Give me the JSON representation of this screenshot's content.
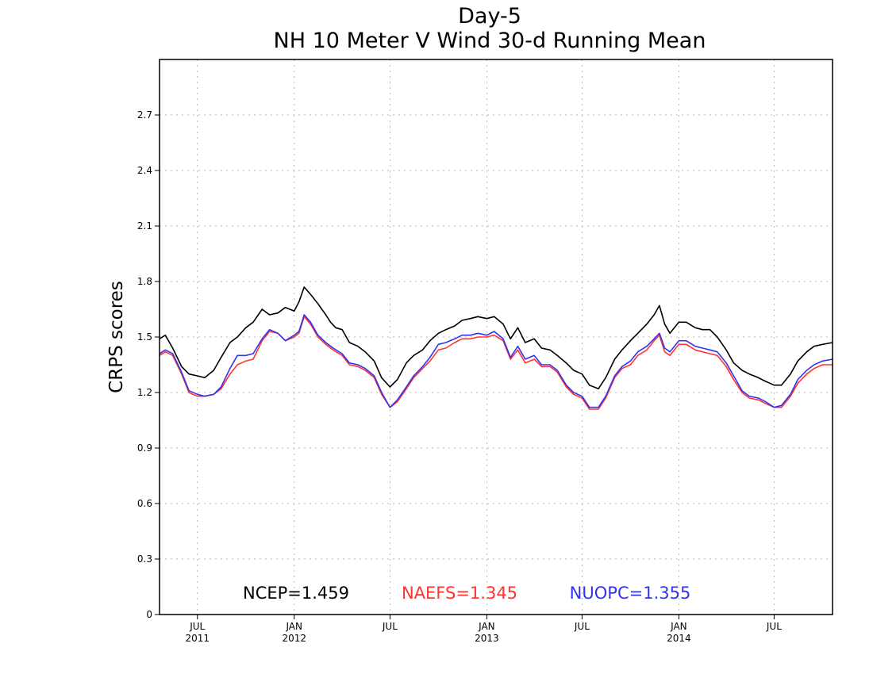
{
  "chart_data": {
    "type": "line",
    "title": "Day-5",
    "subtitle": "NH 10 Meter V Wind 30-d Running Mean",
    "ylabel": "CRPS scores",
    "xlabel": "",
    "ylim": [
      0,
      3.0
    ],
    "xlim": [
      "2011-04-20",
      "2014-10-20"
    ],
    "yticks": [
      0,
      0.3,
      0.6,
      0.9,
      1.2,
      1.5,
      1.8,
      2.1,
      2.4,
      2.7
    ],
    "ytick_labels": [
      "0",
      "0.3",
      "0.6",
      "0.9",
      "1.2",
      "1.5",
      "1.8",
      "2.1",
      "2.4",
      "2.7"
    ],
    "xticks": [
      {
        "date": "2011-07-01",
        "month": "JUL",
        "year": "2011"
      },
      {
        "date": "2012-01-01",
        "month": "JAN",
        "year": "2012"
      },
      {
        "date": "2012-07-01",
        "month": "JUL",
        "year": ""
      },
      {
        "date": "2013-01-01",
        "month": "JAN",
        "year": "2013"
      },
      {
        "date": "2013-07-01",
        "month": "JUL",
        "year": ""
      },
      {
        "date": "2014-01-01",
        "month": "JAN",
        "year": "2014"
      },
      {
        "date": "2014-07-01",
        "month": "JUL",
        "year": ""
      }
    ],
    "grid": true,
    "legend_placement": "bottom-center",
    "series": [
      {
        "name": "NCEP",
        "legend_label": "NCEP=1.459",
        "color": "#000000",
        "points": [
          [
            "2011-04-20",
            1.49
          ],
          [
            "2011-05-01",
            1.51
          ],
          [
            "2011-05-15",
            1.44
          ],
          [
            "2011-06-01",
            1.34
          ],
          [
            "2011-06-15",
            1.3
          ],
          [
            "2011-07-01",
            1.29
          ],
          [
            "2011-07-15",
            1.28
          ],
          [
            "2011-08-01",
            1.32
          ],
          [
            "2011-08-15",
            1.39
          ],
          [
            "2011-09-01",
            1.47
          ],
          [
            "2011-09-15",
            1.5
          ],
          [
            "2011-10-01",
            1.55
          ],
          [
            "2011-10-15",
            1.58
          ],
          [
            "2011-11-01",
            1.65
          ],
          [
            "2011-11-15",
            1.62
          ],
          [
            "2011-12-01",
            1.63
          ],
          [
            "2011-12-15",
            1.66
          ],
          [
            "2012-01-01",
            1.64
          ],
          [
            "2012-01-10",
            1.69
          ],
          [
            "2012-01-20",
            1.77
          ],
          [
            "2012-02-01",
            1.73
          ],
          [
            "2012-02-15",
            1.68
          ],
          [
            "2012-03-01",
            1.62
          ],
          [
            "2012-03-10",
            1.58
          ],
          [
            "2012-03-20",
            1.55
          ],
          [
            "2012-04-01",
            1.54
          ],
          [
            "2012-04-15",
            1.47
          ],
          [
            "2012-05-01",
            1.45
          ],
          [
            "2012-05-15",
            1.42
          ],
          [
            "2012-06-01",
            1.37
          ],
          [
            "2012-06-15",
            1.28
          ],
          [
            "2012-07-01",
            1.23
          ],
          [
            "2012-07-15",
            1.27
          ],
          [
            "2012-08-01",
            1.36
          ],
          [
            "2012-08-15",
            1.4
          ],
          [
            "2012-09-01",
            1.43
          ],
          [
            "2012-09-15",
            1.48
          ],
          [
            "2012-10-01",
            1.52
          ],
          [
            "2012-10-15",
            1.54
          ],
          [
            "2012-11-01",
            1.56
          ],
          [
            "2012-11-15",
            1.59
          ],
          [
            "2012-12-01",
            1.6
          ],
          [
            "2012-12-15",
            1.61
          ],
          [
            "2013-01-01",
            1.6
          ],
          [
            "2013-01-15",
            1.61
          ],
          [
            "2013-02-01",
            1.57
          ],
          [
            "2013-02-15",
            1.49
          ],
          [
            "2013-03-01",
            1.55
          ],
          [
            "2013-03-15",
            1.47
          ],
          [
            "2013-04-01",
            1.49
          ],
          [
            "2013-04-15",
            1.44
          ],
          [
            "2013-05-01",
            1.43
          ],
          [
            "2013-05-15",
            1.4
          ],
          [
            "2013-06-01",
            1.36
          ],
          [
            "2013-06-15",
            1.32
          ],
          [
            "2013-07-01",
            1.3
          ],
          [
            "2013-07-15",
            1.24
          ],
          [
            "2013-08-01",
            1.22
          ],
          [
            "2013-08-15",
            1.28
          ],
          [
            "2013-09-01",
            1.38
          ],
          [
            "2013-09-15",
            1.43
          ],
          [
            "2013-10-01",
            1.48
          ],
          [
            "2013-10-15",
            1.52
          ],
          [
            "2013-11-01",
            1.57
          ],
          [
            "2013-11-15",
            1.62
          ],
          [
            "2013-11-25",
            1.67
          ],
          [
            "2013-12-05",
            1.57
          ],
          [
            "2013-12-15",
            1.52
          ],
          [
            "2014-01-01",
            1.58
          ],
          [
            "2014-01-15",
            1.58
          ],
          [
            "2014-02-01",
            1.55
          ],
          [
            "2014-02-15",
            1.54
          ],
          [
            "2014-03-01",
            1.54
          ],
          [
            "2014-03-15",
            1.5
          ],
          [
            "2014-04-01",
            1.43
          ],
          [
            "2014-04-15",
            1.36
          ],
          [
            "2014-05-01",
            1.32
          ],
          [
            "2014-05-15",
            1.3
          ],
          [
            "2014-06-01",
            1.28
          ],
          [
            "2014-06-15",
            1.26
          ],
          [
            "2014-07-01",
            1.24
          ],
          [
            "2014-07-15",
            1.24
          ],
          [
            "2014-08-01",
            1.3
          ],
          [
            "2014-08-15",
            1.37
          ],
          [
            "2014-09-01",
            1.42
          ],
          [
            "2014-09-15",
            1.45
          ],
          [
            "2014-10-01",
            1.46
          ],
          [
            "2014-10-20",
            1.47
          ]
        ]
      },
      {
        "name": "NAEFS",
        "legend_label": "NAEFS=1.345",
        "color": "#ff3333",
        "points": [
          [
            "2011-04-20",
            1.4
          ],
          [
            "2011-05-01",
            1.42
          ],
          [
            "2011-05-15",
            1.4
          ],
          [
            "2011-06-01",
            1.3
          ],
          [
            "2011-06-15",
            1.2
          ],
          [
            "2011-07-01",
            1.18
          ],
          [
            "2011-07-15",
            1.18
          ],
          [
            "2011-08-01",
            1.19
          ],
          [
            "2011-08-15",
            1.22
          ],
          [
            "2011-09-01",
            1.3
          ],
          [
            "2011-09-15",
            1.35
          ],
          [
            "2011-10-01",
            1.37
          ],
          [
            "2011-10-15",
            1.38
          ],
          [
            "2011-11-01",
            1.48
          ],
          [
            "2011-11-15",
            1.53
          ],
          [
            "2011-12-01",
            1.52
          ],
          [
            "2011-12-15",
            1.48
          ],
          [
            "2012-01-01",
            1.5
          ],
          [
            "2012-01-10",
            1.52
          ],
          [
            "2012-01-20",
            1.61
          ],
          [
            "2012-02-01",
            1.57
          ],
          [
            "2012-02-15",
            1.5
          ],
          [
            "2012-03-01",
            1.46
          ],
          [
            "2012-03-15",
            1.43
          ],
          [
            "2012-04-01",
            1.4
          ],
          [
            "2012-04-15",
            1.35
          ],
          [
            "2012-05-01",
            1.34
          ],
          [
            "2012-05-15",
            1.32
          ],
          [
            "2012-06-01",
            1.28
          ],
          [
            "2012-06-15",
            1.19
          ],
          [
            "2012-07-01",
            1.12
          ],
          [
            "2012-07-15",
            1.15
          ],
          [
            "2012-08-01",
            1.22
          ],
          [
            "2012-08-15",
            1.28
          ],
          [
            "2012-09-01",
            1.33
          ],
          [
            "2012-09-15",
            1.37
          ],
          [
            "2012-10-01",
            1.43
          ],
          [
            "2012-10-15",
            1.44
          ],
          [
            "2012-11-01",
            1.47
          ],
          [
            "2012-11-15",
            1.49
          ],
          [
            "2012-12-01",
            1.49
          ],
          [
            "2012-12-15",
            1.5
          ],
          [
            "2013-01-01",
            1.5
          ],
          [
            "2013-01-15",
            1.51
          ],
          [
            "2013-02-01",
            1.48
          ],
          [
            "2013-02-15",
            1.38
          ],
          [
            "2013-03-01",
            1.43
          ],
          [
            "2013-03-15",
            1.36
          ],
          [
            "2013-04-01",
            1.38
          ],
          [
            "2013-04-15",
            1.34
          ],
          [
            "2013-05-01",
            1.34
          ],
          [
            "2013-05-15",
            1.31
          ],
          [
            "2013-06-01",
            1.23
          ],
          [
            "2013-06-15",
            1.19
          ],
          [
            "2013-07-01",
            1.17
          ],
          [
            "2013-07-15",
            1.11
          ],
          [
            "2013-08-01",
            1.11
          ],
          [
            "2013-08-15",
            1.17
          ],
          [
            "2013-09-01",
            1.28
          ],
          [
            "2013-09-15",
            1.33
          ],
          [
            "2013-10-01",
            1.35
          ],
          [
            "2013-10-15",
            1.4
          ],
          [
            "2013-11-01",
            1.43
          ],
          [
            "2013-11-15",
            1.48
          ],
          [
            "2013-11-25",
            1.51
          ],
          [
            "2013-12-05",
            1.42
          ],
          [
            "2013-12-15",
            1.4
          ],
          [
            "2014-01-01",
            1.46
          ],
          [
            "2014-01-15",
            1.46
          ],
          [
            "2014-02-01",
            1.43
          ],
          [
            "2014-02-15",
            1.42
          ],
          [
            "2014-03-01",
            1.41
          ],
          [
            "2014-03-15",
            1.4
          ],
          [
            "2014-04-01",
            1.34
          ],
          [
            "2014-04-15",
            1.27
          ],
          [
            "2014-05-01",
            1.2
          ],
          [
            "2014-05-15",
            1.17
          ],
          [
            "2014-06-01",
            1.16
          ],
          [
            "2014-06-15",
            1.14
          ],
          [
            "2014-07-01",
            1.12
          ],
          [
            "2014-07-15",
            1.12
          ],
          [
            "2014-08-01",
            1.18
          ],
          [
            "2014-08-15",
            1.25
          ],
          [
            "2014-09-01",
            1.3
          ],
          [
            "2014-09-15",
            1.33
          ],
          [
            "2014-10-01",
            1.35
          ],
          [
            "2014-10-20",
            1.35
          ]
        ]
      },
      {
        "name": "NUOPC",
        "legend_label": "NUOPC=1.355",
        "color": "#3333ee",
        "points": [
          [
            "2011-04-20",
            1.41
          ],
          [
            "2011-05-01",
            1.43
          ],
          [
            "2011-05-15",
            1.41
          ],
          [
            "2011-06-01",
            1.31
          ],
          [
            "2011-06-15",
            1.21
          ],
          [
            "2011-07-01",
            1.19
          ],
          [
            "2011-07-15",
            1.18
          ],
          [
            "2011-08-01",
            1.19
          ],
          [
            "2011-08-15",
            1.23
          ],
          [
            "2011-09-01",
            1.33
          ],
          [
            "2011-09-15",
            1.4
          ],
          [
            "2011-10-01",
            1.4
          ],
          [
            "2011-10-15",
            1.41
          ],
          [
            "2011-11-01",
            1.49
          ],
          [
            "2011-11-15",
            1.54
          ],
          [
            "2011-12-01",
            1.52
          ],
          [
            "2011-12-15",
            1.48
          ],
          [
            "2012-01-01",
            1.51
          ],
          [
            "2012-01-10",
            1.53
          ],
          [
            "2012-01-20",
            1.62
          ],
          [
            "2012-02-01",
            1.58
          ],
          [
            "2012-02-15",
            1.51
          ],
          [
            "2012-03-01",
            1.47
          ],
          [
            "2012-03-15",
            1.44
          ],
          [
            "2012-04-01",
            1.41
          ],
          [
            "2012-04-15",
            1.36
          ],
          [
            "2012-05-01",
            1.35
          ],
          [
            "2012-05-15",
            1.33
          ],
          [
            "2012-06-01",
            1.29
          ],
          [
            "2012-06-15",
            1.2
          ],
          [
            "2012-07-01",
            1.12
          ],
          [
            "2012-07-15",
            1.16
          ],
          [
            "2012-08-01",
            1.23
          ],
          [
            "2012-08-15",
            1.29
          ],
          [
            "2012-09-01",
            1.34
          ],
          [
            "2012-09-15",
            1.39
          ],
          [
            "2012-10-01",
            1.46
          ],
          [
            "2012-10-15",
            1.47
          ],
          [
            "2012-11-01",
            1.49
          ],
          [
            "2012-11-15",
            1.51
          ],
          [
            "2012-12-01",
            1.51
          ],
          [
            "2012-12-15",
            1.52
          ],
          [
            "2013-01-01",
            1.51
          ],
          [
            "2013-01-15",
            1.53
          ],
          [
            "2013-02-01",
            1.49
          ],
          [
            "2013-02-15",
            1.39
          ],
          [
            "2013-03-01",
            1.45
          ],
          [
            "2013-03-15",
            1.38
          ],
          [
            "2013-04-01",
            1.4
          ],
          [
            "2013-04-15",
            1.35
          ],
          [
            "2013-05-01",
            1.35
          ],
          [
            "2013-05-15",
            1.32
          ],
          [
            "2013-06-01",
            1.24
          ],
          [
            "2013-06-15",
            1.2
          ],
          [
            "2013-07-01",
            1.18
          ],
          [
            "2013-07-15",
            1.12
          ],
          [
            "2013-08-01",
            1.12
          ],
          [
            "2013-08-15",
            1.18
          ],
          [
            "2013-09-01",
            1.29
          ],
          [
            "2013-09-15",
            1.34
          ],
          [
            "2013-10-01",
            1.37
          ],
          [
            "2013-10-15",
            1.42
          ],
          [
            "2013-11-01",
            1.45
          ],
          [
            "2013-11-15",
            1.49
          ],
          [
            "2013-11-25",
            1.52
          ],
          [
            "2013-12-05",
            1.44
          ],
          [
            "2013-12-15",
            1.42
          ],
          [
            "2014-01-01",
            1.48
          ],
          [
            "2014-01-15",
            1.48
          ],
          [
            "2014-02-01",
            1.45
          ],
          [
            "2014-02-15",
            1.44
          ],
          [
            "2014-03-01",
            1.43
          ],
          [
            "2014-03-15",
            1.42
          ],
          [
            "2014-04-01",
            1.36
          ],
          [
            "2014-04-15",
            1.29
          ],
          [
            "2014-05-01",
            1.21
          ],
          [
            "2014-05-15",
            1.18
          ],
          [
            "2014-06-01",
            1.17
          ],
          [
            "2014-06-15",
            1.15
          ],
          [
            "2014-07-01",
            1.12
          ],
          [
            "2014-07-15",
            1.13
          ],
          [
            "2014-08-01",
            1.19
          ],
          [
            "2014-08-15",
            1.27
          ],
          [
            "2014-09-01",
            1.32
          ],
          [
            "2014-09-15",
            1.35
          ],
          [
            "2014-10-01",
            1.37
          ],
          [
            "2014-10-20",
            1.38
          ]
        ]
      }
    ]
  }
}
